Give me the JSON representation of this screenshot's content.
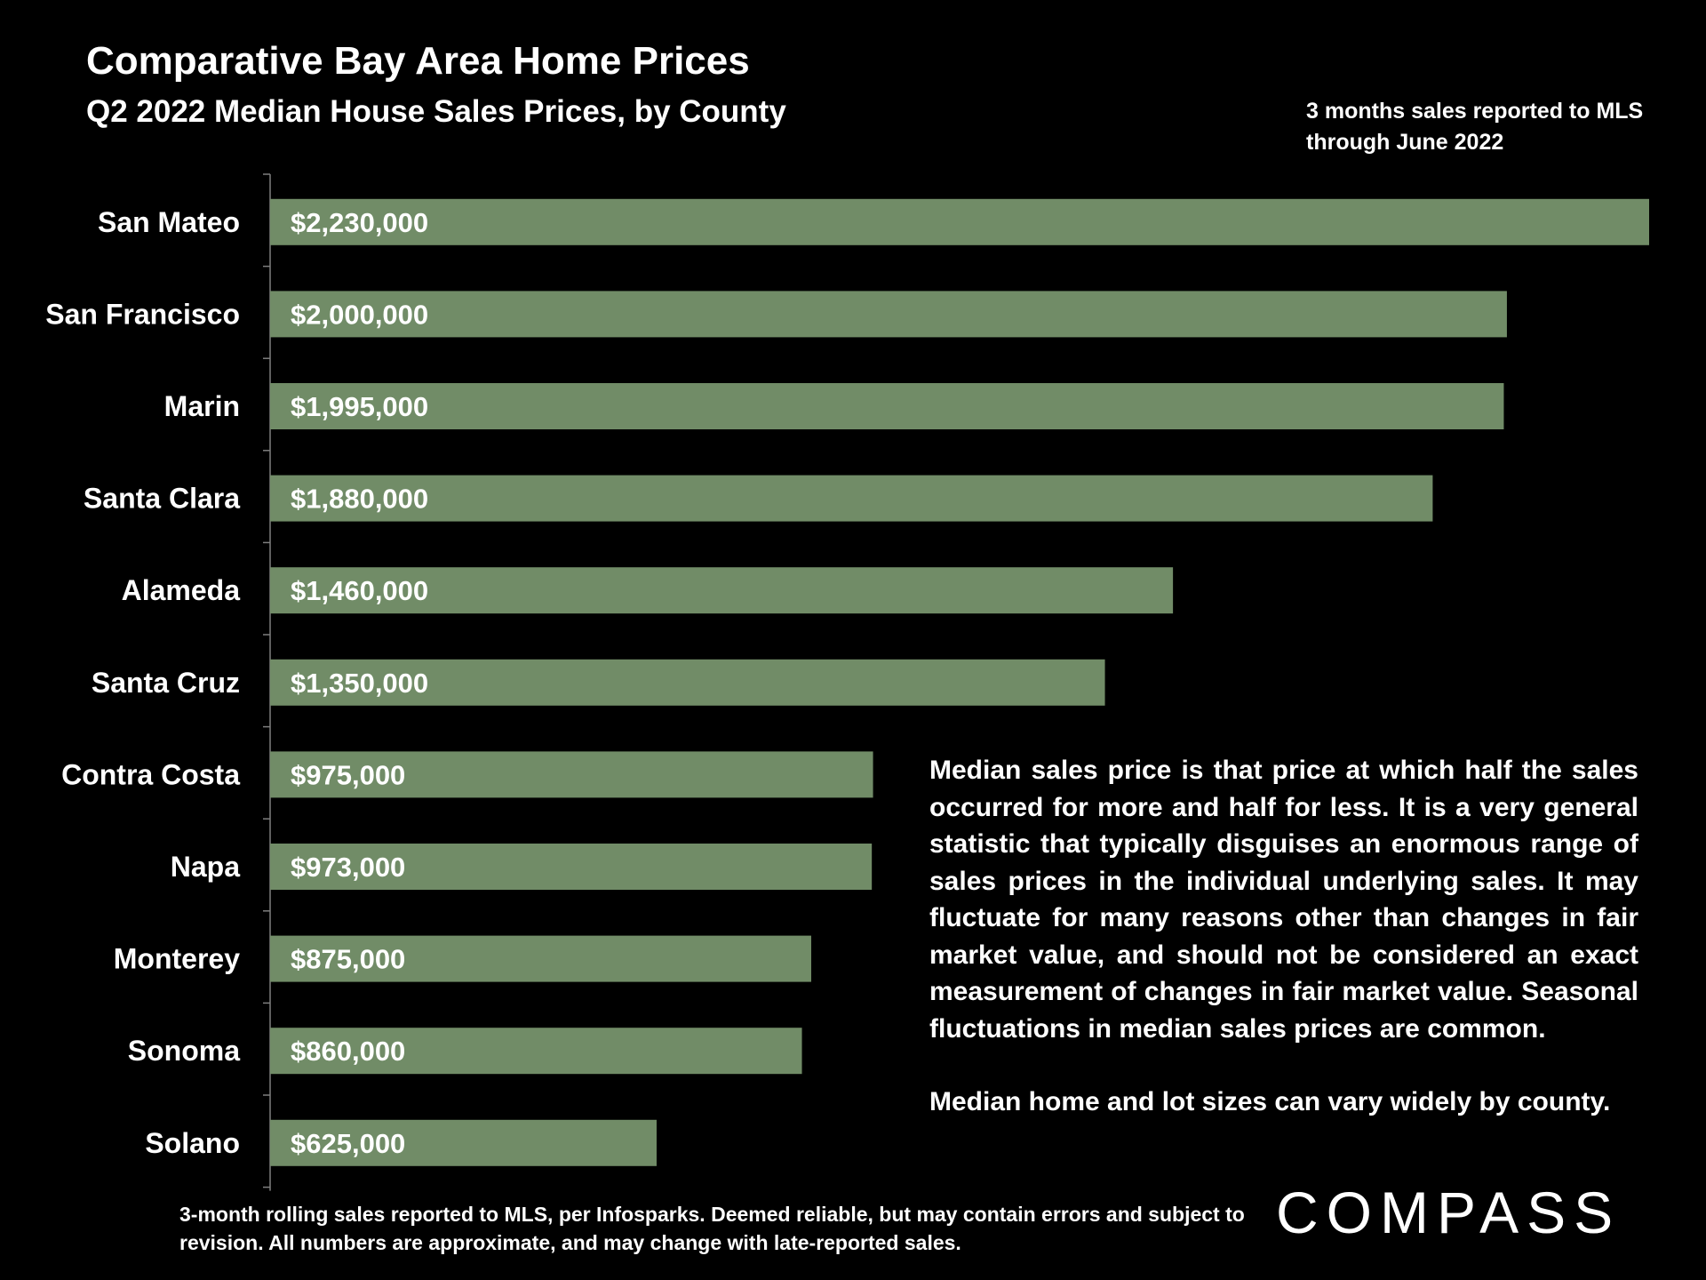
{
  "title": "Comparative Bay Area Home Prices",
  "subtitle": "Q2 2022 Median House Sales Prices, by County",
  "note_top": "3 months sales reported to MLS through June 2022",
  "explanation": [
    "Median sales price is that price at which half the sales occurred for more and half for less. It is a very general statistic that typically disguises an enormous range of sales prices in the individual underlying sales. It may fluctuate for many reasons other than changes in fair market value, and should not be considered an exact measurement of changes in fair market value. Seasonal fluctuations in median sales prices are common.",
    "Median home and lot sizes can vary widely by county."
  ],
  "footnote": "3-month rolling sales reported to MLS, per Infosparks. Deemed reliable, but may contain errors and subject to revision. All numbers are approximate, and may change with late-reported sales.",
  "logo_text": "COMPASS",
  "colors": {
    "background": "#000000",
    "bar": "#718c67",
    "text": "#ffffff",
    "axis": "#7f7f7f"
  },
  "chart_data": {
    "type": "bar",
    "orientation": "horizontal",
    "title": "Comparative Bay Area Home Prices",
    "subtitle": "Q2 2022 Median House Sales Prices, by County",
    "xlabel": "",
    "ylabel": "",
    "xlim": [
      0,
      2230000
    ],
    "grid": false,
    "categories": [
      "San Mateo",
      "San Francisco",
      "Marin",
      "Santa Clara",
      "Alameda",
      "Santa Cruz",
      "Contra Costa",
      "Napa",
      "Monterey",
      "Sonoma",
      "Solano"
    ],
    "values": [
      2230000,
      2000000,
      1995000,
      1880000,
      1460000,
      1350000,
      975000,
      973000,
      875000,
      860000,
      625000
    ],
    "data_labels": [
      "$2,230,000",
      "$2,000,000",
      "$1,995,000",
      "$1,880,000",
      "$1,460,000",
      "$1,350,000",
      "$975,000",
      "$973,000",
      "$875,000",
      "$860,000",
      "$625,000"
    ]
  }
}
